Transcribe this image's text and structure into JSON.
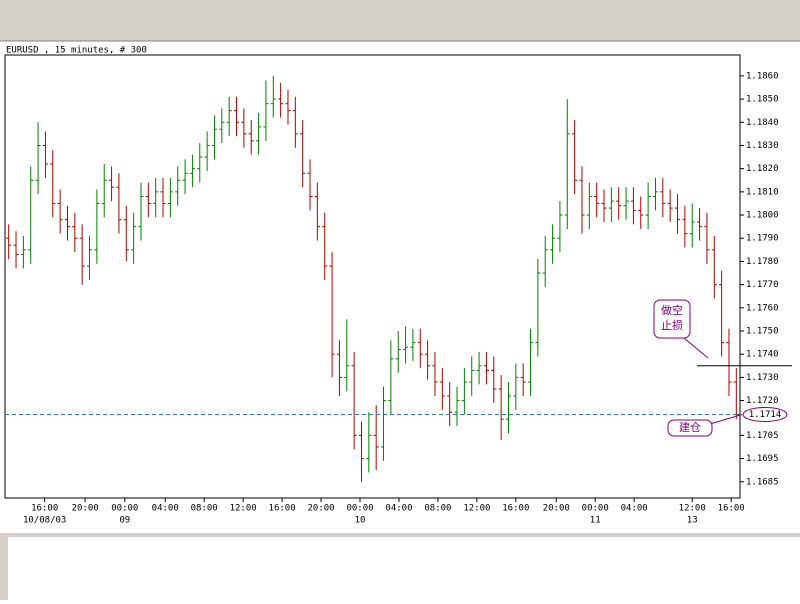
{
  "chart_data": {
    "type": "ohlc",
    "title": "EURUSD , 15 minutes, # 300",
    "open": [
      1.179,
      1.1787,
      1.1783,
      1.1785,
      1.1815,
      1.183,
      1.1822,
      1.1805,
      1.1798,
      1.1795,
      1.179,
      1.1778,
      1.1785,
      1.1805,
      1.1815,
      1.1812,
      1.1798,
      1.1785,
      1.1795,
      1.1808,
      1.1805,
      1.181,
      1.1805,
      1.181,
      1.1815,
      1.1818,
      1.182,
      1.1825,
      1.183,
      1.1837,
      1.184,
      1.1845,
      1.184,
      1.1835,
      1.1832,
      1.1838,
      1.1848,
      1.185,
      1.1848,
      1.1845,
      1.1835,
      1.1818,
      1.1808,
      1.1795,
      1.1778,
      1.174,
      1.173,
      1.1735,
      1.1705,
      1.1695,
      1.1705,
      1.17,
      1.172,
      1.1738,
      1.1742,
      1.1743,
      1.1745,
      1.174,
      1.1735,
      1.1728,
      1.1722,
      1.1715,
      1.172,
      1.1728,
      1.1733,
      1.1735,
      1.1733,
      1.1725,
      1.1712,
      1.1722,
      1.173,
      1.1728,
      1.1745,
      1.1775,
      1.1785,
      1.179,
      1.18,
      1.1835,
      1.1815,
      1.18,
      1.1808,
      1.1805,
      1.1803,
      1.1806,
      1.1804,
      1.1806,
      1.1802,
      1.18,
      1.1808,
      1.181,
      1.1805,
      1.1803,
      1.1798,
      1.1792,
      1.1797,
      1.1795,
      1.1785,
      1.177,
      1.1745,
      1.1728
    ],
    "high": [
      1.1796,
      1.1793,
      1.1791,
      1.1821,
      1.184,
      1.1836,
      1.1828,
      1.1811,
      1.1804,
      1.1801,
      1.1796,
      1.1791,
      1.1811,
      1.1822,
      1.1821,
      1.1818,
      1.1804,
      1.1801,
      1.1814,
      1.1814,
      1.1816,
      1.1816,
      1.1816,
      1.1821,
      1.1824,
      1.1826,
      1.1831,
      1.1836,
      1.1843,
      1.1846,
      1.1851,
      1.1851,
      1.1846,
      1.1841,
      1.1844,
      1.1858,
      1.186,
      1.1857,
      1.1854,
      1.1851,
      1.1841,
      1.1824,
      1.1814,
      1.1801,
      1.1784,
      1.1746,
      1.1755,
      1.1741,
      1.1711,
      1.1715,
      1.1718,
      1.1726,
      1.1746,
      1.175,
      1.1752,
      1.1751,
      1.1751,
      1.1746,
      1.1741,
      1.1734,
      1.1728,
      1.1726,
      1.1734,
      1.1739,
      1.1741,
      1.1741,
      1.1739,
      1.1731,
      1.1728,
      1.1736,
      1.1736,
      1.1751,
      1.1781,
      1.1791,
      1.1796,
      1.1806,
      1.185,
      1.1841,
      1.1821,
      1.1814,
      1.1814,
      1.1811,
      1.1812,
      1.1812,
      1.1812,
      1.1812,
      1.1808,
      1.1814,
      1.1816,
      1.1816,
      1.1811,
      1.1809,
      1.1804,
      1.1805,
      1.1803,
      1.1801,
      1.1791,
      1.1776,
      1.1751,
      1.1734
    ],
    "low": [
      1.1781,
      1.1777,
      1.1777,
      1.1779,
      1.1809,
      1.1816,
      1.1799,
      1.1792,
      1.1789,
      1.1784,
      1.177,
      1.1772,
      1.1779,
      1.1799,
      1.1806,
      1.1792,
      1.178,
      1.1779,
      1.1789,
      1.1799,
      1.1799,
      1.1799,
      1.1799,
      1.1804,
      1.1809,
      1.1812,
      1.1814,
      1.1819,
      1.1824,
      1.1831,
      1.1834,
      1.1834,
      1.1829,
      1.1826,
      1.1826,
      1.1832,
      1.1842,
      1.1842,
      1.1839,
      1.1829,
      1.1812,
      1.1802,
      1.1789,
      1.1772,
      1.173,
      1.1722,
      1.1724,
      1.1699,
      1.1685,
      1.1689,
      1.169,
      1.1694,
      1.1714,
      1.1732,
      1.1736,
      1.1737,
      1.1734,
      1.1729,
      1.1722,
      1.1716,
      1.1709,
      1.1709,
      1.1714,
      1.1722,
      1.1727,
      1.1727,
      1.1719,
      1.1703,
      1.1706,
      1.1716,
      1.1722,
      1.1722,
      1.1739,
      1.1769,
      1.1779,
      1.1784,
      1.1794,
      1.1809,
      1.1792,
      1.1794,
      1.1799,
      1.1797,
      1.1797,
      1.1798,
      1.1798,
      1.1796,
      1.1794,
      1.1794,
      1.1802,
      1.1799,
      1.1797,
      1.1792,
      1.1786,
      1.1786,
      1.1789,
      1.1779,
      1.1764,
      1.1739,
      1.1722,
      1.1712
    ],
    "close": [
      1.1787,
      1.1783,
      1.1785,
      1.1815,
      1.183,
      1.1822,
      1.1805,
      1.1798,
      1.1795,
      1.179,
      1.1778,
      1.1785,
      1.1805,
      1.1815,
      1.1812,
      1.1798,
      1.1785,
      1.1795,
      1.1808,
      1.1805,
      1.181,
      1.1805,
      1.181,
      1.1815,
      1.1818,
      1.182,
      1.1825,
      1.183,
      1.1837,
      1.184,
      1.1845,
      1.184,
      1.1835,
      1.1832,
      1.1838,
      1.1848,
      1.185,
      1.1848,
      1.1845,
      1.1835,
      1.1818,
      1.1808,
      1.1795,
      1.1778,
      1.174,
      1.173,
      1.1735,
      1.1705,
      1.1695,
      1.1705,
      1.17,
      1.172,
      1.1738,
      1.1742,
      1.1743,
      1.1745,
      1.174,
      1.1735,
      1.1728,
      1.1722,
      1.1715,
      1.172,
      1.1728,
      1.1733,
      1.1735,
      1.1733,
      1.1725,
      1.1712,
      1.1722,
      1.173,
      1.1728,
      1.1745,
      1.1775,
      1.1785,
      1.179,
      1.18,
      1.1835,
      1.1815,
      1.18,
      1.1808,
      1.1805,
      1.1803,
      1.1806,
      1.1804,
      1.1806,
      1.1802,
      1.18,
      1.1808,
      1.181,
      1.1805,
      1.1803,
      1.1798,
      1.1792,
      1.1797,
      1.1795,
      1.1785,
      1.177,
      1.1745,
      1.1728,
      1.1714
    ],
    "up_color": "#008000",
    "down_color": "#b00000",
    "xlim": [
      0,
      100
    ],
    "xticks": [
      {
        "value": 5.4,
        "label": "16:00"
      },
      {
        "value": 10.9,
        "label": "20:00"
      },
      {
        "value": 16.3,
        "label": "00:00"
      },
      {
        "value": 21.8,
        "label": "04:00"
      },
      {
        "value": 27.1,
        "label": "08:00"
      },
      {
        "value": 32.4,
        "label": "12:00"
      },
      {
        "value": 37.7,
        "label": "16:00"
      },
      {
        "value": 43.0,
        "label": "20:00"
      },
      {
        "value": 48.3,
        "label": "00:00"
      },
      {
        "value": 53.6,
        "label": "04:00"
      },
      {
        "value": 58.9,
        "label": "08:00"
      },
      {
        "value": 64.2,
        "label": "12:00"
      },
      {
        "value": 69.5,
        "label": "16:00"
      },
      {
        "value": 75.0,
        "label": "20:00"
      },
      {
        "value": 80.3,
        "label": "00:00"
      },
      {
        "value": 85.6,
        "label": "04:00"
      },
      {
        "value": 93.5,
        "label": "12:00"
      },
      {
        "value": 98.8,
        "label": "16:00"
      }
    ],
    "xdates": [
      {
        "value": 5.4,
        "label": "10/08/03"
      },
      {
        "value": 16.3,
        "label": "09"
      },
      {
        "value": 48.3,
        "label": "10"
      },
      {
        "value": 80.3,
        "label": "11"
      },
      {
        "value": 93.5,
        "label": "13"
      }
    ],
    "ylim": [
      1.1678,
      1.1869
    ],
    "yticks": [
      {
        "value": 1.1685,
        "label": "1.1685"
      },
      {
        "value": 1.1695,
        "label": "1.1695"
      },
      {
        "value": 1.1705,
        "label": "1.1705"
      },
      {
        "value": 1.172,
        "label": "1.1720"
      },
      {
        "value": 1.173,
        "label": "1.1730"
      },
      {
        "value": 1.174,
        "label": "1.1740"
      },
      {
        "value": 1.175,
        "label": "1.1750"
      },
      {
        "value": 1.176,
        "label": "1.1760"
      },
      {
        "value": 1.177,
        "label": "1.1770"
      },
      {
        "value": 1.178,
        "label": "1.1780"
      },
      {
        "value": 1.179,
        "label": "1.1790"
      },
      {
        "value": 1.18,
        "label": "1.1800"
      },
      {
        "value": 1.181,
        "label": "1.1810"
      },
      {
        "value": 1.182,
        "label": "1.1820"
      },
      {
        "value": 1.183,
        "label": "1.1830"
      },
      {
        "value": 1.184,
        "label": "1.1840"
      },
      {
        "value": 1.185,
        "label": "1.1850"
      },
      {
        "value": 1.186,
        "label": "1.1860"
      }
    ],
    "last_price": {
      "value": 1.1714,
      "label": "1.1714"
    },
    "stop_line": 1.1735,
    "annotations": {
      "stop": [
        "做空",
        "止损"
      ],
      "entry": "建仓"
    }
  }
}
